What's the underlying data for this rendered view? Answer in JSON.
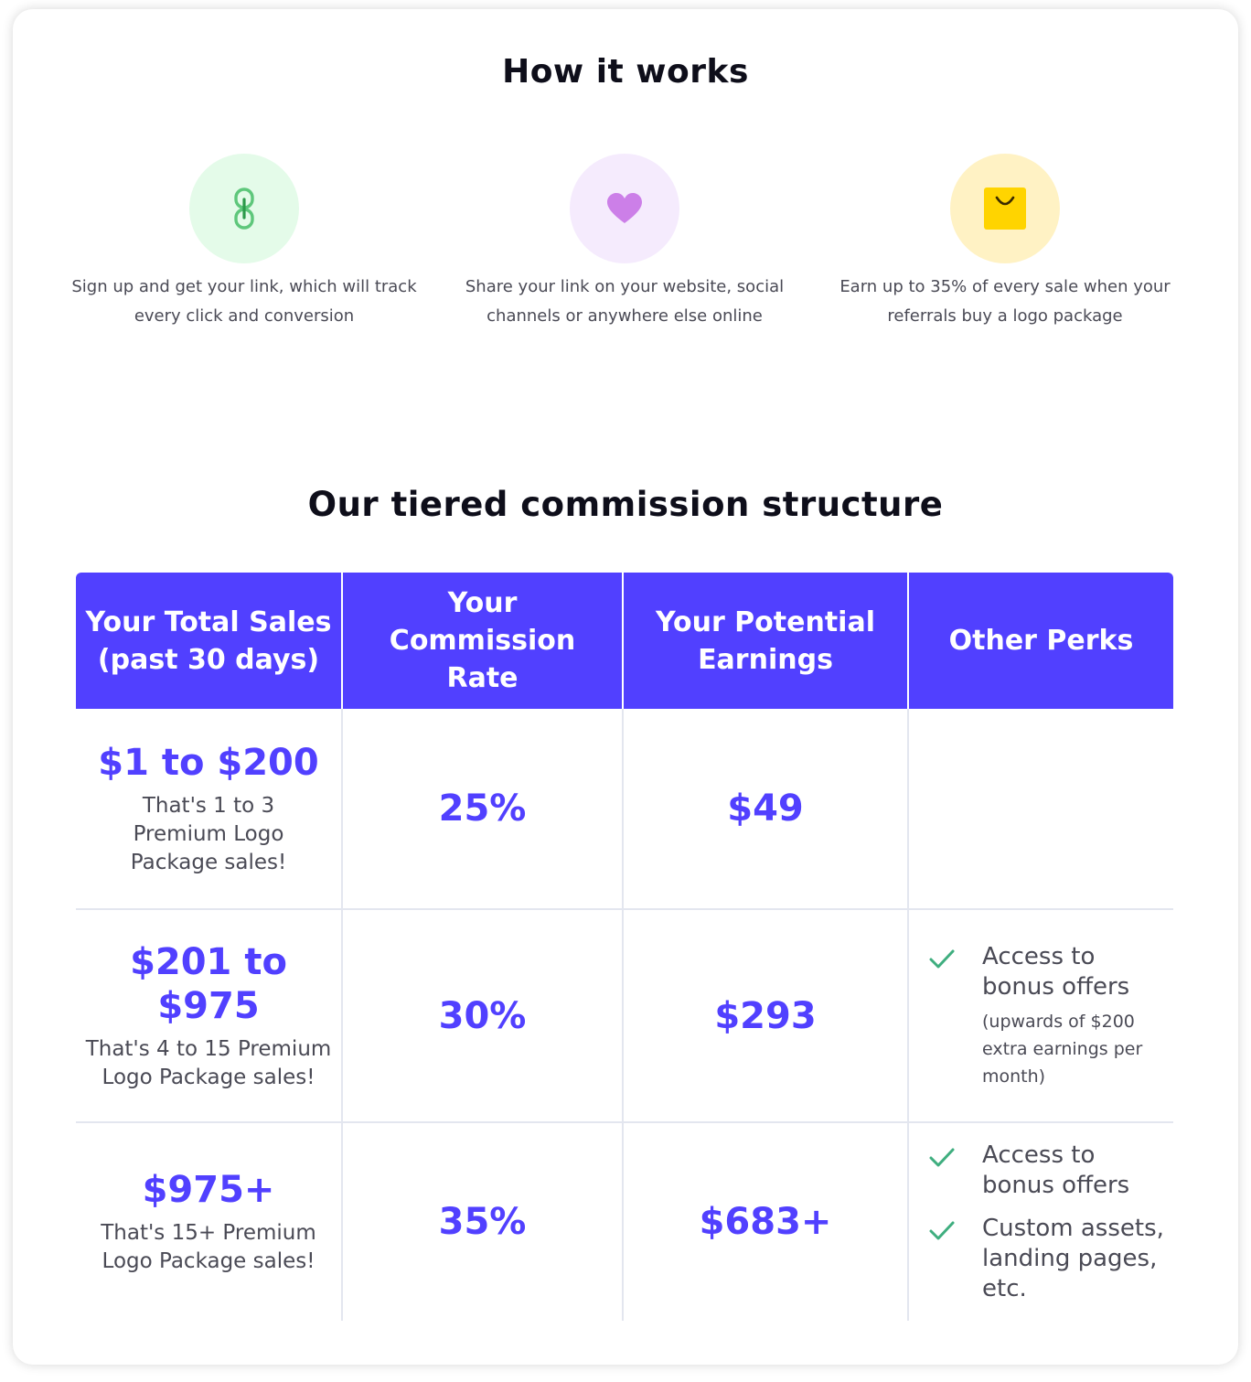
{
  "how_it_works": {
    "title": "How it works",
    "steps": [
      {
        "icon": "link-icon",
        "text": "Sign up and get your link, which will track every click and conversion",
        "circle_color": "#e4fbe9"
      },
      {
        "icon": "heart-icon",
        "text": "Share your link on your website, social channels or anywhere else online",
        "circle_color": "#f5ebfd"
      },
      {
        "icon": "shopping-bag-icon",
        "text": "Earn up to 35% of every sale when your referrals buy a logo package",
        "circle_color": "#fff2c4"
      }
    ]
  },
  "commission": {
    "title": "Our tiered commission structure",
    "headers": [
      "Your Total Sales (past 30 days)",
      "Your Commission Rate",
      "Your Potential Earnings",
      "Other Perks"
    ],
    "rows": [
      {
        "sales_range": "$1 to $200",
        "sales_note": "That's 1 to 3 Premium Logo Package sales!",
        "rate": "25%",
        "earnings": "$49",
        "perks": []
      },
      {
        "sales_range": "$201 to $975",
        "sales_note": "That's 4 to 15 Premium Logo Package sales!",
        "rate": "30%",
        "earnings": "$293",
        "perks": [
          {
            "label": "Access to bonus offers",
            "sub": "(upwards of $200 extra earnings per month)"
          }
        ]
      },
      {
        "sales_range": "$975+",
        "sales_note": "That's 15+ Premium Logo Package sales!",
        "rate": "35%",
        "earnings": "$683+",
        "perks": [
          {
            "label": "Access to bonus offers"
          },
          {
            "label": "Custom assets, landing pages, etc."
          }
        ]
      }
    ]
  },
  "colors": {
    "accent": "#5140ff",
    "check": "#3fae7f",
    "link_icon": "#5ec77b",
    "heart_icon": "#cc7fe8",
    "bag_icon": "#ffd400"
  }
}
